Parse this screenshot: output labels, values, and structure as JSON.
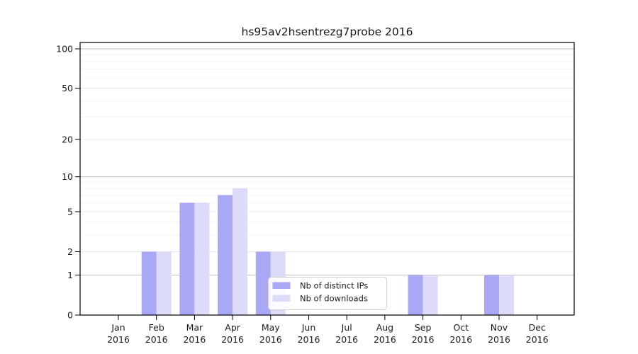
{
  "title": "hs95av2hsentrezg7probe 2016",
  "chart_data": {
    "type": "bar",
    "title": "hs95av2hsentrezg7probe 2016",
    "categories": [
      "Jan",
      "Feb",
      "Mar",
      "Apr",
      "May",
      "Jun",
      "Jul",
      "Aug",
      "Sep",
      "Oct",
      "Nov",
      "Dec"
    ],
    "category_year": "2016",
    "series": [
      {
        "name": "Nb of distinct IPs",
        "color": "#a8a8f5",
        "values": [
          0,
          2,
          6,
          7,
          2,
          0,
          0,
          0,
          1,
          0,
          1,
          0
        ]
      },
      {
        "name": "Nb of downloads",
        "color": "#dcdcf9",
        "values": [
          0,
          2,
          6,
          8,
          2,
          0,
          0,
          0,
          1,
          0,
          1,
          0
        ]
      }
    ],
    "xlabel": "",
    "ylabel": "",
    "yticks": [
      0,
      1,
      2,
      5,
      10,
      20,
      50,
      100
    ],
    "minor_yticks": [
      3,
      4,
      6,
      7,
      8,
      9,
      30,
      40,
      60,
      70,
      80,
      90
    ],
    "yscale": "log10(1+x)",
    "ylim": [
      0,
      112
    ],
    "grid": true,
    "legend_position": "lower center",
    "colors": {
      "distinct_ips": "#a8a8f5",
      "downloads": "#dcdcf9",
      "grid_decade": "#bfbfbf",
      "grid_major": "#e8e8e8",
      "grid_minor": "#f3f3f3",
      "spine": "#000000",
      "legend_border": "#cfcfcf",
      "text": "#1a1a1a"
    }
  }
}
